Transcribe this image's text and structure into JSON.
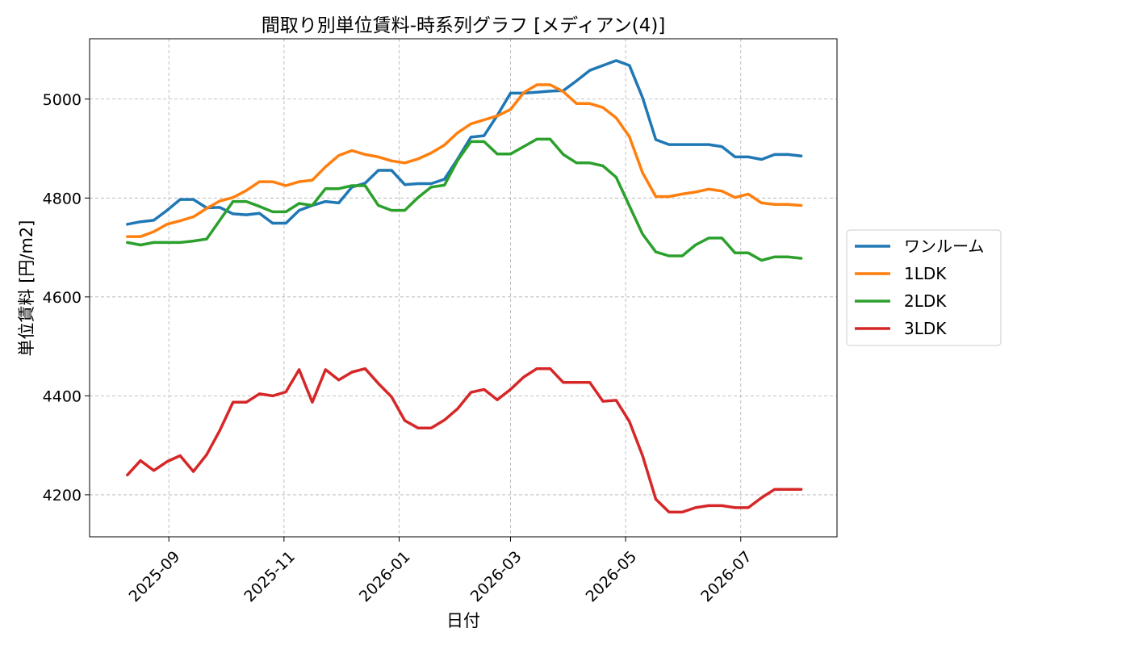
{
  "chart_data": {
    "type": "line",
    "title": "間取り別単位賃料-時系列グラフ [メディアン(4)]",
    "xlabel": "日付",
    "ylabel": "単位賃料 [円/m2]",
    "xlim": [
      "2025-07-21",
      "2026-08-21"
    ],
    "ylim": [
      4115,
      5122
    ],
    "grid": true,
    "legend_position": "right",
    "x_ticks": [
      "2025-09-01",
      "2025-11-01",
      "2026-01-01",
      "2026-03-01",
      "2026-05-01",
      "2026-07-01"
    ],
    "x_tick_labels": [
      "2025-09",
      "2025-11",
      "2026-01",
      "2026-03",
      "2026-05",
      "2026-07"
    ],
    "y_ticks": [
      4200,
      4400,
      4600,
      4800,
      5000
    ],
    "y_tick_labels": [
      "4200",
      "4400",
      "4600",
      "4800",
      "5000"
    ],
    "x": [
      "2025-08-10",
      "2025-08-17",
      "2025-08-24",
      "2025-08-31",
      "2025-09-07",
      "2025-09-14",
      "2025-09-21",
      "2025-09-28",
      "2025-10-05",
      "2025-10-12",
      "2025-10-19",
      "2025-10-26",
      "2025-11-02",
      "2025-11-09",
      "2025-11-16",
      "2025-11-23",
      "2025-11-30",
      "2025-12-07",
      "2025-12-14",
      "2025-12-21",
      "2025-12-28",
      "2026-01-04",
      "2026-01-11",
      "2026-01-18",
      "2026-01-25",
      "2026-02-01",
      "2026-02-08",
      "2026-02-15",
      "2026-02-22",
      "2026-03-01",
      "2026-03-08",
      "2026-03-15",
      "2026-03-22",
      "2026-03-29",
      "2026-04-05",
      "2026-04-12",
      "2026-04-19",
      "2026-04-26",
      "2026-05-03",
      "2026-05-10",
      "2026-05-17",
      "2026-05-24",
      "2026-05-31",
      "2026-06-07",
      "2026-06-14",
      "2026-06-21",
      "2026-06-28",
      "2026-07-05",
      "2026-07-12",
      "2026-07-19",
      "2026-07-26",
      "2026-08-02"
    ],
    "series": [
      {
        "name": "ワンルーム",
        "color": "#1f77b4",
        "values": [
          4747,
          4752,
          4755,
          4775,
          4797,
          4797,
          4780,
          4781,
          4768,
          4766,
          4769,
          4749,
          4749,
          4775,
          4785,
          4793,
          4790,
          4822,
          4830,
          4856,
          4856,
          4827,
          4829,
          4829,
          4838,
          4879,
          4923,
          4926,
          4967,
          5012,
          5012,
          5014,
          5016,
          5017,
          5037,
          5058,
          5068,
          5078,
          5068,
          5003,
          4918,
          4908,
          4908,
          4908,
          4908,
          4904,
          4883,
          4883,
          4878,
          4888,
          4888,
          4885
        ]
      },
      {
        "name": "1LDK",
        "color": "#ff7f0e",
        "values": [
          4722,
          4722,
          4732,
          4747,
          4754,
          4762,
          4779,
          4794,
          4801,
          4815,
          4833,
          4833,
          4825,
          4833,
          4836,
          4863,
          4886,
          4896,
          4888,
          4883,
          4875,
          4871,
          4879,
          4891,
          4907,
          4932,
          4950,
          4958,
          4966,
          4979,
          5013,
          5029,
          5029,
          5015,
          4991,
          4991,
          4983,
          4962,
          4924,
          4851,
          4803,
          4803,
          4808,
          4812,
          4818,
          4814,
          4801,
          4808,
          4790,
          4787,
          4787,
          4785
        ]
      },
      {
        "name": "2LDK",
        "color": "#2ca02c",
        "values": [
          4710,
          4705,
          4710,
          4710,
          4710,
          4713,
          4717,
          4755,
          4793,
          4793,
          4783,
          4772,
          4772,
          4789,
          4785,
          4819,
          4819,
          4825,
          4825,
          4785,
          4775,
          4775,
          4801,
          4822,
          4826,
          4876,
          4914,
          4914,
          4889,
          4889,
          4904,
          4919,
          4919,
          4888,
          4871,
          4871,
          4865,
          4842,
          4784,
          4727,
          4691,
          4683,
          4683,
          4705,
          4719,
          4719,
          4689,
          4689,
          4674,
          4681,
          4681,
          4678
        ]
      },
      {
        "name": "3LDK",
        "color": "#d62728",
        "values": [
          4240,
          4269,
          4249,
          4267,
          4279,
          4247,
          4281,
          4330,
          4387,
          4387,
          4404,
          4400,
          4408,
          4453,
          4387,
          4453,
          4432,
          4448,
          4455,
          4425,
          4398,
          4350,
          4335,
          4335,
          4351,
          4374,
          4407,
          4413,
          4392,
          4413,
          4438,
          4455,
          4455,
          4427,
          4427,
          4427,
          4389,
          4391,
          4348,
          4279,
          4191,
          4165,
          4165,
          4174,
          4178,
          4178,
          4174,
          4174,
          4194,
          4211,
          4211,
          4211
        ]
      }
    ]
  }
}
